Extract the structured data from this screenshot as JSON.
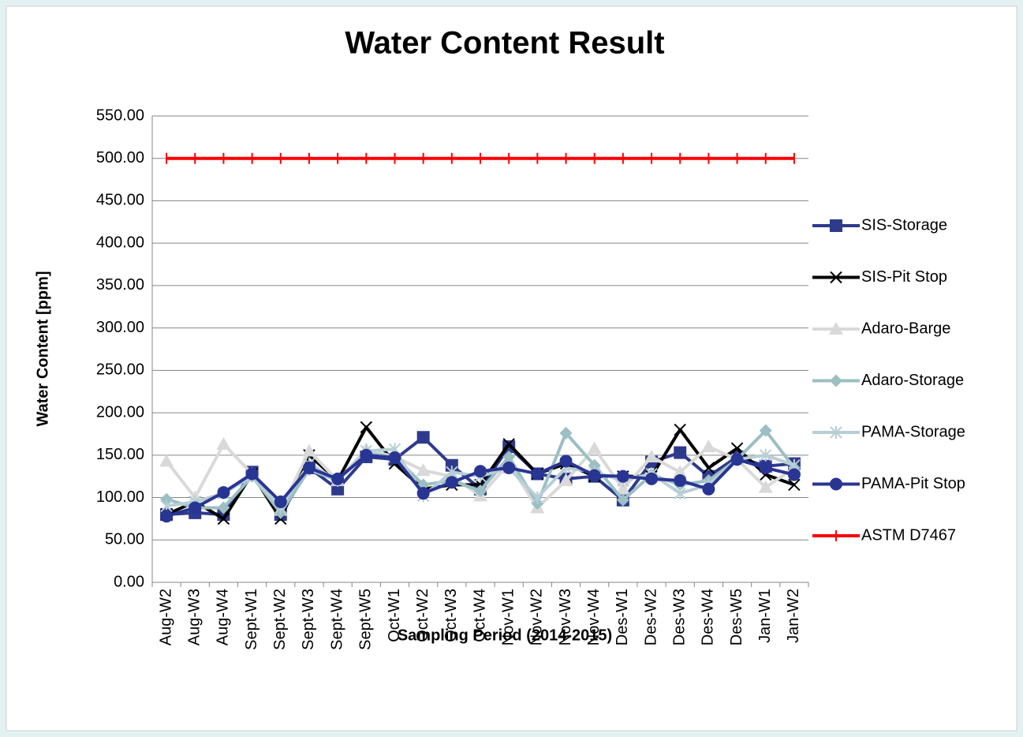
{
  "chart_data": {
    "type": "line",
    "title": "Water Content Result",
    "x_label": "Sampling Period (2014-2015)",
    "y_label": "Water Content [ppm]",
    "categories": [
      "Aug-W2",
      "Aug-W3",
      "Aug-W4",
      "Sept-W1",
      "Sept-W2",
      "Sept-W3",
      "Sept-W4",
      "Sept-W5",
      "Oct-W1",
      "Oct-W2",
      "Oct-W3",
      "Oct-W4",
      "Nov-W1",
      "Nov-W2",
      "Nov-W3",
      "Nov-W4",
      "Des-W1",
      "Des-W2",
      "Des-W3",
      "Des-W4",
      "Des-W5",
      "Jan-W1",
      "Jan-W2"
    ],
    "ylim": [
      0,
      550
    ],
    "yticks": [
      {
        "value": 0,
        "label": "0.00"
      },
      {
        "value": 50,
        "label": "50.00"
      },
      {
        "value": 100,
        "label": "100.00"
      },
      {
        "value": 150,
        "label": "150.00"
      },
      {
        "value": 200,
        "label": "200.00"
      },
      {
        "value": 250,
        "label": "250.00"
      },
      {
        "value": 300,
        "label": "300.00"
      },
      {
        "value": 350,
        "label": "350.00"
      },
      {
        "value": 400,
        "label": "400.00"
      },
      {
        "value": 450,
        "label": "450.00"
      },
      {
        "value": 500,
        "label": "500.00"
      },
      {
        "value": 550,
        "label": "550.00"
      }
    ],
    "grid": true,
    "legend": "right",
    "series": [
      {
        "name": "SIS-Storage",
        "color": "#2e3a8c",
        "marker": "square",
        "values": [
          80,
          82,
          80,
          130,
          80,
          135,
          110,
          148,
          145,
          171,
          138,
          110,
          160,
          128,
          122,
          125,
          97,
          142,
          153,
          125,
          148,
          137,
          140
        ]
      },
      {
        "name": "SIS-Pit Stop",
        "color": "#000000",
        "marker": "x",
        "values": [
          80,
          95,
          75,
          128,
          75,
          150,
          120,
          183,
          140,
          110,
          115,
          115,
          163,
          128,
          140,
          125,
          125,
          125,
          180,
          135,
          158,
          127,
          115
        ]
      },
      {
        "name": "Adaro-Barge",
        "color": "#d9d9d9",
        "marker": "triangle",
        "values": [
          143,
          100,
          163,
          128,
          85,
          155,
          120,
          157,
          148,
          132,
          125,
          102,
          140,
          88,
          120,
          158,
          110,
          148,
          130,
          160,
          145,
          112,
          135
        ]
      },
      {
        "name": "Adaro-Storage",
        "color": "#9bbfc3",
        "marker": "diamond",
        "values": [
          98,
          88,
          88,
          125,
          82,
          133,
          120,
          152,
          148,
          115,
          120,
          108,
          148,
          93,
          176,
          138,
          97,
          127,
          115,
          120,
          145,
          179,
          135
        ]
      },
      {
        "name": "PAMA-Storage",
        "color": "#b8ced6",
        "marker": "asterisk",
        "values": [
          90,
          95,
          105,
          125,
          88,
          140,
          120,
          155,
          157,
          102,
          130,
          125,
          135,
          100,
          135,
          130,
          120,
          128,
          105,
          115,
          145,
          150,
          138
        ]
      },
      {
        "name": "PAMA-Pit Stop",
        "color": "#283593",
        "marker": "circle",
        "values": [
          78,
          88,
          106,
          128,
          95,
          135,
          122,
          150,
          147,
          105,
          118,
          131,
          135,
          128,
          143,
          126,
          125,
          122,
          120,
          110,
          145,
          135,
          127
        ]
      },
      {
        "name": "ASTM D7467",
        "color": "#ff0000",
        "marker": "plus",
        "values": [
          500,
          500,
          500,
          500,
          500,
          500,
          500,
          500,
          500,
          500,
          500,
          500,
          500,
          500,
          500,
          500,
          500,
          500,
          500,
          500,
          500,
          500,
          500
        ]
      }
    ]
  }
}
